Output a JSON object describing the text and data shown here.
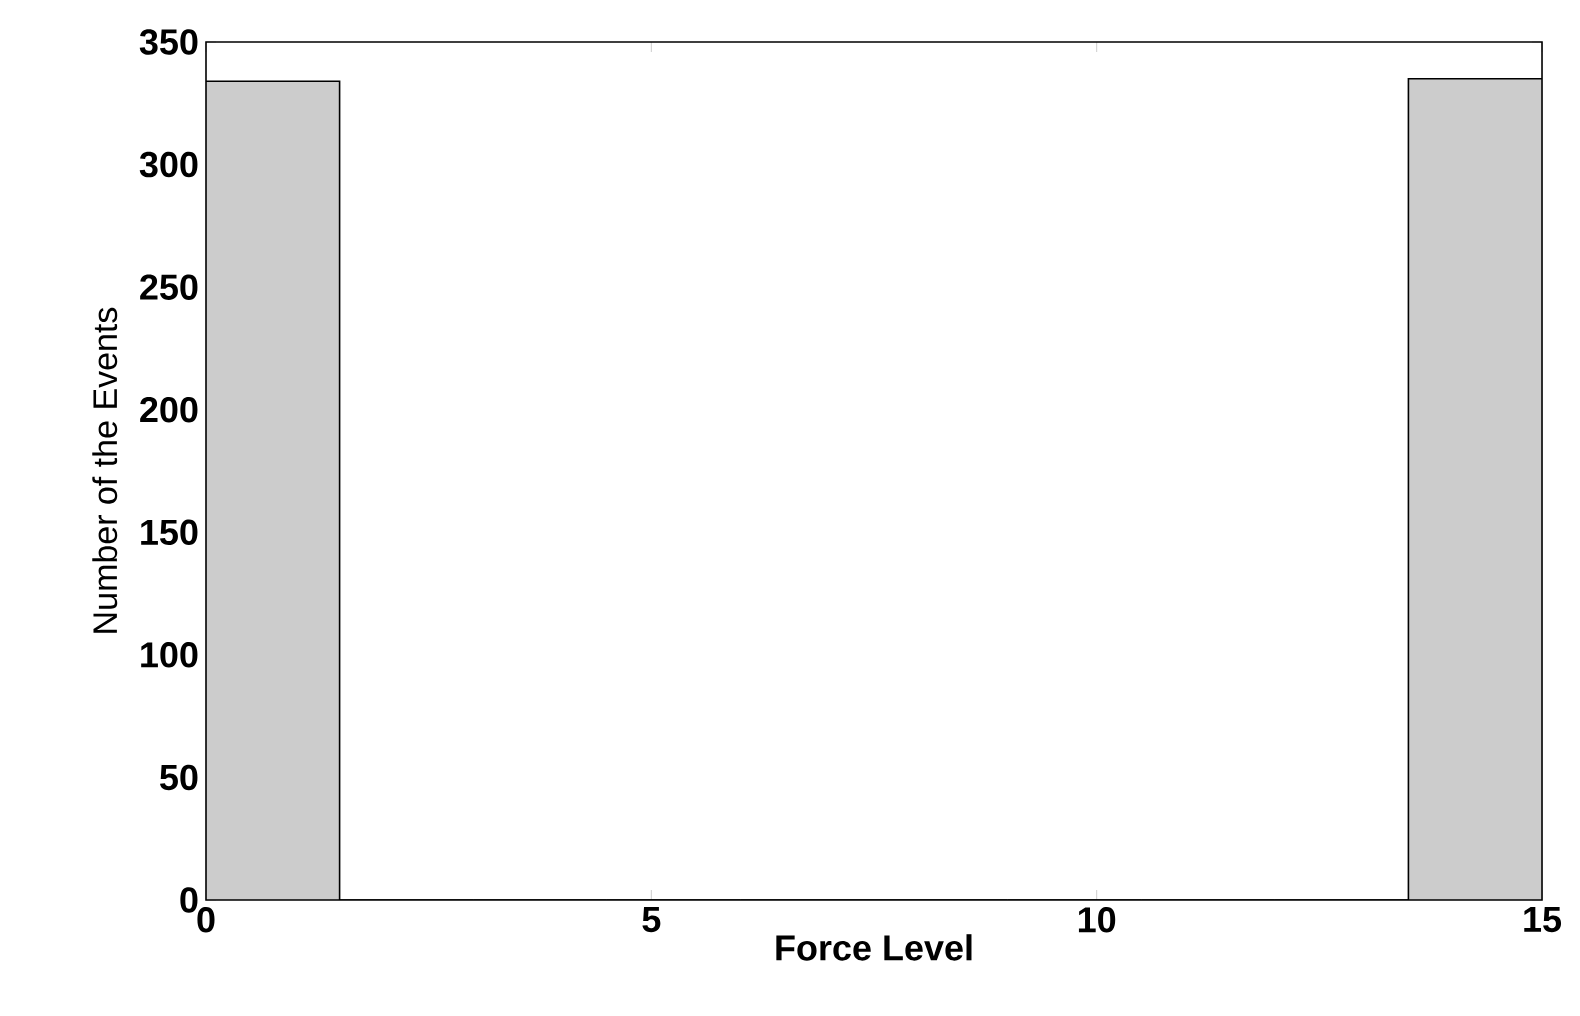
{
  "chart_data": {
    "type": "histogram",
    "xlabel": "Force Level",
    "ylabel": "Number of the Events",
    "bins": [
      0,
      1.5,
      3,
      4.5,
      6,
      7.5,
      9,
      10.5,
      12,
      13.5,
      15
    ],
    "values": [
      334,
      0,
      0,
      0,
      0,
      0,
      0,
      0,
      0,
      335
    ],
    "color": "#cccccc",
    "xlim": [
      0,
      15
    ],
    "xticks": [
      0,
      5,
      10,
      15
    ],
    "ylim": [
      0,
      350
    ],
    "yticks": [
      0,
      50,
      100,
      150,
      200,
      250,
      300,
      350
    ],
    "grid": false
  }
}
